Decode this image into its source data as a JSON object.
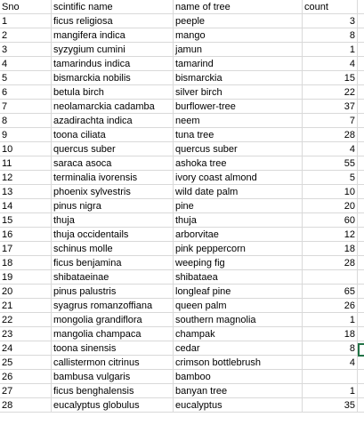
{
  "headers": {
    "sno": "Sno",
    "scientific": "scintific name",
    "tree": "name of tree",
    "count": "count"
  },
  "rows": [
    {
      "sno": "1",
      "scientific": "ficus religiosa",
      "tree": "peeple",
      "count": "3"
    },
    {
      "sno": "2",
      "scientific": "mangifera indica",
      "tree": "mango",
      "count": "8"
    },
    {
      "sno": "3",
      "scientific": "syzygium cumini",
      "tree": "jamun",
      "count": "1"
    },
    {
      "sno": "4",
      "scientific": "tamarindus indica",
      "tree": "tamarind",
      "count": "4"
    },
    {
      "sno": "5",
      "scientific": "bismarckia nobilis",
      "tree": "bismarckia",
      "count": "15"
    },
    {
      "sno": "6",
      "scientific": "betula birch",
      "tree": "silver birch",
      "count": "22"
    },
    {
      "sno": "7",
      "scientific": " neolamarckia cadamba",
      "tree": "burflower-tree",
      "count": "37"
    },
    {
      "sno": "8",
      "scientific": "azadirachta indica",
      "tree": "neem",
      "count": "7"
    },
    {
      "sno": "9",
      "scientific": "toona ciliata",
      "tree": "tuna tree",
      "count": "28"
    },
    {
      "sno": "10",
      "scientific": "quercus suber",
      "tree": "quercus suber",
      "count": "4"
    },
    {
      "sno": "11",
      "scientific": "saraca asoca",
      "tree": "ashoka tree",
      "count": "55"
    },
    {
      "sno": "12",
      "scientific": "terminalia ivorensis",
      "tree": "ivory coast almond",
      "count": "5"
    },
    {
      "sno": "13",
      "scientific": "phoenix sylvestris",
      "tree": "wild date palm",
      "count": "10"
    },
    {
      "sno": "14",
      "scientific": "pinus nigra",
      "tree": "pine",
      "count": "20"
    },
    {
      "sno": "15",
      "scientific": "thuja",
      "tree": "thuja",
      "count": "60"
    },
    {
      "sno": "16",
      "scientific": "thuja occidentails",
      "tree": "arborvitae",
      "count": "12"
    },
    {
      "sno": "17",
      "scientific": "schinus molle",
      "tree": "pink peppercorn",
      "count": "18"
    },
    {
      "sno": "18",
      "scientific": "ficus benjamina",
      "tree": "weeping fig",
      "count": "28"
    },
    {
      "sno": "19",
      "scientific": "shibataeinae",
      "tree": "shibataea",
      "count": ""
    },
    {
      "sno": "20",
      "scientific": "pinus palustris",
      "tree": "longleaf pine",
      "count": "65"
    },
    {
      "sno": "21",
      "scientific": "syagrus romanzoffiana",
      "tree": "queen palm",
      "count": "26"
    },
    {
      "sno": "22",
      "scientific": "mongolia grandiflora",
      "tree": "southern magnolia",
      "count": "1"
    },
    {
      "sno": "23",
      "scientific": "mangolia champaca",
      "tree": "champak",
      "count": "18"
    },
    {
      "sno": "24",
      "scientific": "toona sinensis",
      "tree": " cedar",
      "count": "8"
    },
    {
      "sno": "25",
      "scientific": "callistermon citrinus",
      "tree": "crimson bottlebrush",
      "count": "4"
    },
    {
      "sno": "26",
      "scientific": "bambusa vulgaris",
      "tree": "bamboo",
      "count": ""
    },
    {
      "sno": "27",
      "scientific": "ficus benghalensis",
      "tree": "banyan tree",
      "count": "1"
    },
    {
      "sno": "28",
      "scientific": "eucalyptus globulus",
      "tree": "eucalyptus",
      "count": "35"
    }
  ]
}
